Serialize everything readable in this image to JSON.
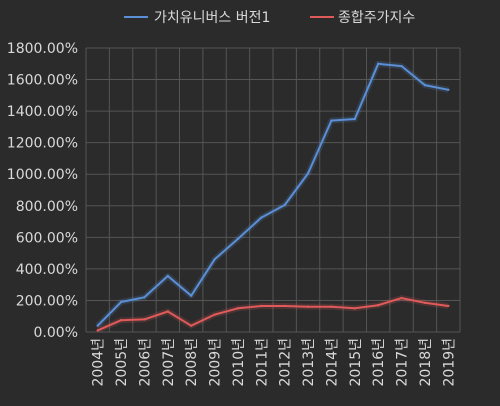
{
  "chart_data": {
    "type": "line",
    "categories": [
      "2004년",
      "2005년",
      "2006년",
      "2007년",
      "2008년",
      "2009년",
      "2010년",
      "2011년",
      "2012년",
      "2013년",
      "2014년",
      "2015년",
      "2016년",
      "2017년",
      "2018년",
      "2019년"
    ],
    "series": [
      {
        "name": "가치유니버스 버전1",
        "color": "#5b8fd6",
        "values": [
          40,
          190,
          220,
          355,
          230,
          460,
          590,
          725,
          805,
          1005,
          1340,
          1350,
          1700,
          1685,
          1565,
          1535
        ]
      },
      {
        "name": "종합주가지수",
        "color": "#e05a5a",
        "values": [
          10,
          75,
          80,
          130,
          40,
          110,
          150,
          165,
          165,
          160,
          160,
          150,
          170,
          215,
          185,
          165
        ]
      }
    ],
    "ylim": [
      0,
      1800
    ],
    "y_ticks": [
      "0.00%",
      "200.00%",
      "400.00%",
      "600.00%",
      "800.00%",
      "1000.00%",
      "1200.00%",
      "1400.00%",
      "1600.00%",
      "1800.00%"
    ],
    "grid": true,
    "legend_position": "top",
    "background": "#2b2b2b",
    "gridline_color": "#555555"
  }
}
